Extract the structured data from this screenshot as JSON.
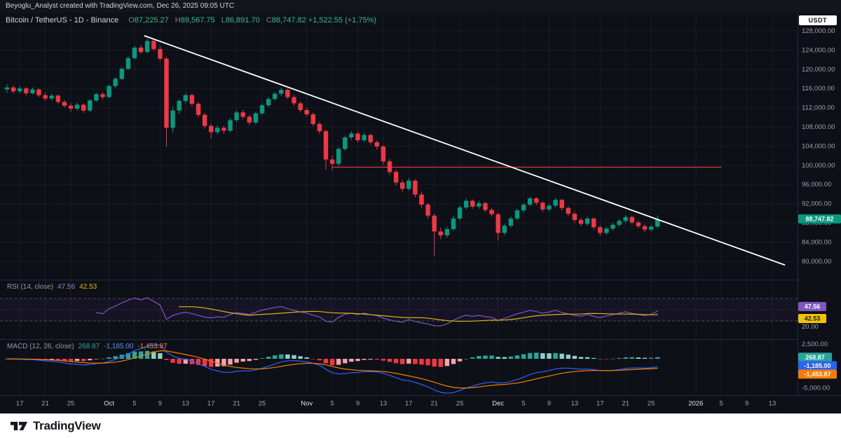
{
  "attribution": "Beyoglu_Analyst created with TradingView.com, Dec 26, 2025 09:05 UTC",
  "symbol": {
    "title": "Bitcoin / TetherUS - 1D - Binance",
    "unit_badge": "USDT",
    "ohlc": {
      "o_label": "O",
      "o": "87,225.27",
      "h_label": "H",
      "h": "89,567.75",
      "l_label": "L",
      "l": "86,891.70",
      "c_label": "C",
      "c": "88,747.82",
      "change": "+1,522.55 (+1.75%)"
    }
  },
  "colors": {
    "background": "#0e1018",
    "up": "#089981",
    "down": "#f23645",
    "trend": "#ffffff",
    "hline": "#f23645",
    "grid": "rgba(255,255,255,0.05)",
    "separator": "#262b38",
    "rsi": "#7e57c2",
    "rsi_ma": "#d9b310",
    "macd": "#2962ff",
    "signal": "#f57c00",
    "hist_up": "#26a69a",
    "hist_up_light": "#8fd0c6",
    "hist_down": "#f23645",
    "hist_down_light": "#f5a3aa",
    "price_badge_bg": "#089981",
    "rsi_badge_bg": "#7e57c2",
    "rsi_ma_badge_bg": "#f2c200",
    "hist_badge_bg": "#26a69a",
    "macd_badge_bg": "#2962ff",
    "signal_badge_bg": "#f57c00"
  },
  "chart_data": {
    "type": "candlestick",
    "title": "Bitcoin / TetherUS 1D (Binance)",
    "interval": "1D",
    "price_axis": {
      "min": 79000,
      "max": 128500,
      "ticks": [
        {
          "v": 128000,
          "label": "128,000.00"
        },
        {
          "v": 124000,
          "label": "124,000.00"
        },
        {
          "v": 120000,
          "label": "120,000.00"
        },
        {
          "v": 116000,
          "label": "116,000.00"
        },
        {
          "v": 112000,
          "label": "112,000.00"
        },
        {
          "v": 108000,
          "label": "108,000.00"
        },
        {
          "v": 104000,
          "label": "104,000.00"
        },
        {
          "v": 100000,
          "label": "100,000.00"
        },
        {
          "v": 96000,
          "label": "96,000.00"
        },
        {
          "v": 92000,
          "label": "92,000.00"
        },
        {
          "v": 88000,
          "label": "88,000.00"
        },
        {
          "v": 84000,
          "label": "84,000.00"
        },
        {
          "v": 80000,
          "label": "80,000.00"
        }
      ]
    },
    "time_ticks": [
      {
        "label": "17",
        "i": 2,
        "major": false
      },
      {
        "label": "21",
        "i": 6,
        "major": false
      },
      {
        "label": "25",
        "i": 10,
        "major": false
      },
      {
        "label": "Oct",
        "i": 16,
        "major": true
      },
      {
        "label": "5",
        "i": 20,
        "major": false
      },
      {
        "label": "9",
        "i": 24,
        "major": false
      },
      {
        "label": "13",
        "i": 28,
        "major": false
      },
      {
        "label": "17",
        "i": 32,
        "major": false
      },
      {
        "label": "21",
        "i": 36,
        "major": false
      },
      {
        "label": "25",
        "i": 40,
        "major": false
      },
      {
        "label": "Nov",
        "i": 47,
        "major": true
      },
      {
        "label": "5",
        "i": 51,
        "major": false
      },
      {
        "label": "9",
        "i": 55,
        "major": false
      },
      {
        "label": "13",
        "i": 59,
        "major": false
      },
      {
        "label": "17",
        "i": 63,
        "major": false
      },
      {
        "label": "21",
        "i": 67,
        "major": false
      },
      {
        "label": "25",
        "i": 71,
        "major": false
      },
      {
        "label": "Dec",
        "i": 77,
        "major": true
      },
      {
        "label": "5",
        "i": 81,
        "major": false
      },
      {
        "label": "9",
        "i": 85,
        "major": false
      },
      {
        "label": "13",
        "i": 89,
        "major": false
      },
      {
        "label": "17",
        "i": 93,
        "major": false
      },
      {
        "label": "21",
        "i": 97,
        "major": false
      },
      {
        "label": "25",
        "i": 101,
        "major": false
      },
      {
        "label": "2026",
        "i": 108,
        "major": true
      },
      {
        "label": "5",
        "i": 112,
        "major": false
      },
      {
        "label": "9",
        "i": 116,
        "major": false
      },
      {
        "label": "13",
        "i": 120,
        "major": false
      }
    ],
    "candles": [
      [
        115800,
        116900,
        115100,
        116200
      ],
      [
        116200,
        116600,
        114900,
        115400
      ],
      [
        115400,
        116500,
        115000,
        116000
      ],
      [
        116000,
        116300,
        114500,
        115000
      ],
      [
        115000,
        116200,
        114700,
        115800
      ],
      [
        115800,
        116000,
        114200,
        114600
      ],
      [
        114600,
        115100,
        113400,
        113900
      ],
      [
        113900,
        114900,
        113500,
        114500
      ],
      [
        114500,
        114800,
        112800,
        113200
      ],
      [
        113200,
        113600,
        112000,
        112400
      ],
      [
        112400,
        112900,
        111200,
        111800
      ],
      [
        111800,
        113000,
        111400,
        112600
      ],
      [
        112600,
        112900,
        110900,
        111400
      ],
      [
        111400,
        113800,
        111100,
        113500
      ],
      [
        113500,
        115100,
        113200,
        114800
      ],
      [
        114800,
        115200,
        113700,
        114200
      ],
      [
        114200,
        116800,
        114000,
        116500
      ],
      [
        116500,
        118400,
        116100,
        118000
      ],
      [
        118000,
        120500,
        117700,
        120100
      ],
      [
        120100,
        122700,
        119800,
        122300
      ],
      [
        122300,
        124900,
        122000,
        124500
      ],
      [
        124500,
        125100,
        123200,
        123600
      ],
      [
        123600,
        126400,
        123300,
        125900
      ],
      [
        125900,
        126200,
        123800,
        124200
      ],
      [
        124200,
        124800,
        121800,
        122200
      ],
      [
        122200,
        122600,
        103900,
        107800
      ],
      [
        107800,
        112200,
        106800,
        111400
      ],
      [
        111400,
        113800,
        110700,
        113400
      ],
      [
        113400,
        115000,
        112900,
        114600
      ],
      [
        114600,
        114900,
        112300,
        112800
      ],
      [
        112800,
        113200,
        110000,
        110500
      ],
      [
        110500,
        110900,
        107600,
        108200
      ],
      [
        108200,
        108600,
        105600,
        106900
      ],
      [
        106900,
        108300,
        106400,
        107800
      ],
      [
        107800,
        108200,
        106600,
        107200
      ],
      [
        107200,
        109800,
        106900,
        109400
      ],
      [
        109400,
        111400,
        109000,
        111000
      ],
      [
        111000,
        111500,
        109600,
        110100
      ],
      [
        110100,
        110500,
        108400,
        108900
      ],
      [
        108900,
        111200,
        108500,
        110800
      ],
      [
        110800,
        112900,
        110400,
        112500
      ],
      [
        112500,
        114200,
        112100,
        113800
      ],
      [
        113800,
        115300,
        113400,
        114900
      ],
      [
        114900,
        116100,
        114400,
        115700
      ],
      [
        115700,
        116000,
        113800,
        114200
      ],
      [
        114200,
        114600,
        112400,
        112900
      ],
      [
        112900,
        113300,
        111000,
        111500
      ],
      [
        111500,
        111900,
        110100,
        110600
      ],
      [
        110600,
        111000,
        108100,
        108600
      ],
      [
        108600,
        109000,
        106500,
        107100
      ],
      [
        107100,
        107400,
        99100,
        101200
      ],
      [
        101200,
        102000,
        98900,
        100300
      ],
      [
        100300,
        103800,
        99800,
        103400
      ],
      [
        103400,
        106200,
        103000,
        105800
      ],
      [
        105800,
        107100,
        105300,
        106600
      ],
      [
        106600,
        107000,
        104700,
        105200
      ],
      [
        105200,
        106800,
        104800,
        106300
      ],
      [
        106300,
        106600,
        104300,
        104800
      ],
      [
        104800,
        105200,
        103300,
        103900
      ],
      [
        103900,
        104200,
        100200,
        100800
      ],
      [
        100800,
        101300,
        98000,
        98600
      ],
      [
        98600,
        99000,
        95800,
        96400
      ],
      [
        96400,
        97000,
        94400,
        95100
      ],
      [
        95100,
        97300,
        94700,
        96800
      ],
      [
        96800,
        97100,
        93300,
        93900
      ],
      [
        93900,
        94400,
        91200,
        91800
      ],
      [
        91800,
        92200,
        88900,
        89500
      ],
      [
        89500,
        89900,
        81200,
        86200
      ],
      [
        86200,
        87000,
        84600,
        85400
      ],
      [
        85400,
        87200,
        84900,
        86700
      ],
      [
        86700,
        89400,
        86300,
        88900
      ],
      [
        88900,
        91700,
        88500,
        91200
      ],
      [
        91200,
        93100,
        90800,
        92600
      ],
      [
        92600,
        92900,
        90900,
        91400
      ],
      [
        91400,
        92600,
        91000,
        92100
      ],
      [
        92100,
        92400,
        90200,
        90700
      ],
      [
        90700,
        91100,
        89300,
        89800
      ],
      [
        89800,
        90100,
        84300,
        85900
      ],
      [
        85900,
        87800,
        85400,
        87400
      ],
      [
        87400,
        89300,
        87000,
        88900
      ],
      [
        88900,
        91000,
        88500,
        90600
      ],
      [
        90600,
        92200,
        90200,
        91800
      ],
      [
        91800,
        93500,
        91400,
        93100
      ],
      [
        93100,
        93400,
        91700,
        92200
      ],
      [
        92200,
        92500,
        90300,
        90800
      ],
      [
        90800,
        92000,
        90400,
        91600
      ],
      [
        91600,
        93200,
        91200,
        92800
      ],
      [
        92800,
        93000,
        90600,
        91100
      ],
      [
        91100,
        91500,
        89400,
        89900
      ],
      [
        89900,
        90300,
        88100,
        88600
      ],
      [
        88600,
        89000,
        87300,
        87800
      ],
      [
        87800,
        89300,
        87400,
        88900
      ],
      [
        88900,
        89200,
        86600,
        87100
      ],
      [
        87100,
        87500,
        85300,
        85900
      ],
      [
        85900,
        87200,
        85500,
        86800
      ],
      [
        86800,
        88000,
        86400,
        87600
      ],
      [
        87600,
        88800,
        87200,
        88400
      ],
      [
        88400,
        89600,
        88000,
        89200
      ],
      [
        89200,
        89500,
        87600,
        88100
      ],
      [
        88100,
        88500,
        86900,
        87300
      ],
      [
        87300,
        87700,
        86100,
        86600
      ],
      [
        86600,
        87600,
        86200,
        87200
      ],
      [
        87225,
        89568,
        86892,
        88748
      ]
    ],
    "last_price": {
      "value": 88747.82,
      "label": "88,747.82"
    },
    "trendline": {
      "i1": 21.5,
      "price1": 127000,
      "i2": 122,
      "price2": 79200
    },
    "resistance_line": {
      "price": 99600,
      "i1": 51,
      "i2": 112
    },
    "indicators": {
      "rsi_period": 14,
      "rsi_ma_period": 14,
      "macd_fast": 12,
      "macd_slow": 26,
      "macd_signal": 9
    }
  },
  "rsi_panel": {
    "label": "RSI (14, close)",
    "rsi_value": "47.56",
    "ma_value": "42.53",
    "rsi_num": 47.56,
    "ma_num": 42.53,
    "bands": {
      "upper": 70,
      "middle": 50,
      "lower": 30
    },
    "axis": [
      {
        "v": 60,
        "label": "60.00"
      },
      {
        "v": 20,
        "label": "20.00"
      }
    ]
  },
  "macd_panel": {
    "label": "MACD (12, 26, close)",
    "hist_value": "268.87",
    "macd_value": "-1,185.00",
    "signal_value": "-1,453.87",
    "hist_num": 268.87,
    "macd_num": -1185.0,
    "signal_num": -1453.87,
    "axis": [
      {
        "v": 2500,
        "label": "2,500.00"
      },
      {
        "v": -5000,
        "label": "-5,000.00"
      }
    ]
  },
  "footer": {
    "brand": "TradingView"
  }
}
